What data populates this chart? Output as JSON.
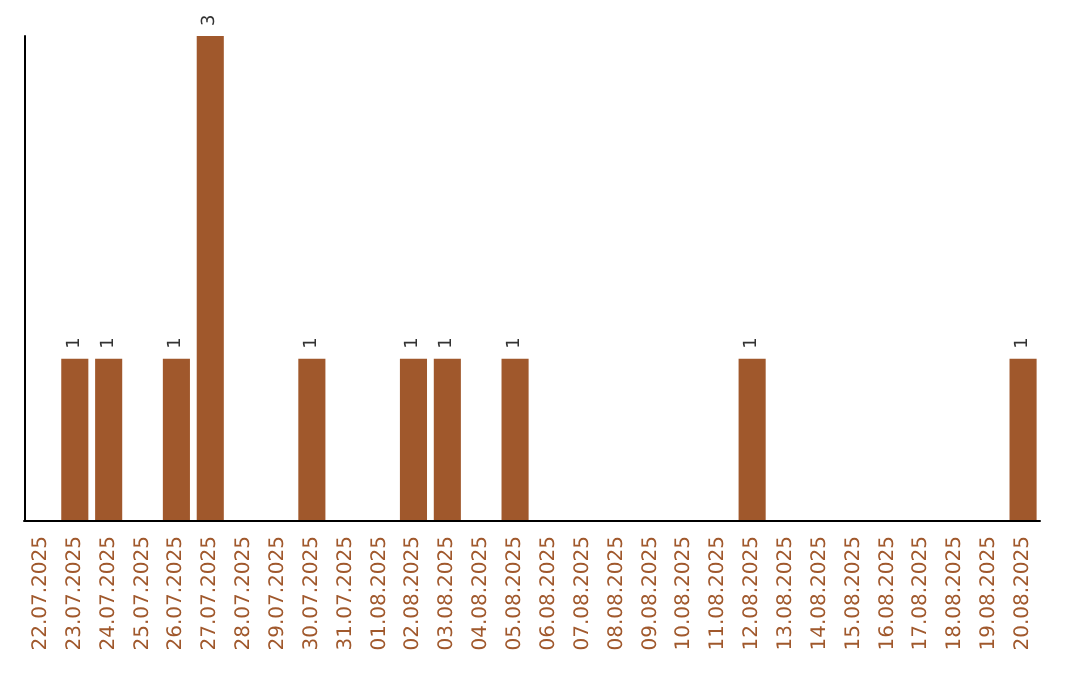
{
  "chart_data": {
    "type": "bar",
    "categories": [
      "22.07.2025",
      "23.07.2025",
      "24.07.2025",
      "25.07.2025",
      "26.07.2025",
      "27.07.2025",
      "28.07.2025",
      "29.07.2025",
      "30.07.2025",
      "31.07.2025",
      "01.08.2025",
      "02.08.2025",
      "03.08.2025",
      "04.08.2025",
      "05.08.2025",
      "06.08.2025",
      "07.08.2025",
      "08.08.2025",
      "09.08.2025",
      "10.08.2025",
      "11.08.2025",
      "12.08.2025",
      "13.08.2025",
      "14.08.2025",
      "15.08.2025",
      "16.08.2025",
      "17.08.2025",
      "18.08.2025",
      "19.08.2025",
      "20.08.2025"
    ],
    "values": [
      0,
      1,
      1,
      0,
      1,
      3,
      0,
      0,
      1,
      0,
      0,
      1,
      1,
      0,
      1,
      0,
      0,
      0,
      0,
      0,
      0,
      1,
      0,
      0,
      0,
      0,
      0,
      0,
      0,
      1
    ],
    "value_labels": [
      null,
      "1",
      "1",
      null,
      "1",
      "3",
      null,
      null,
      "1",
      null,
      null,
      "1",
      "1",
      null,
      "1",
      null,
      null,
      null,
      null,
      null,
      null,
      "1",
      null,
      null,
      null,
      null,
      null,
      null,
      null,
      "1"
    ],
    "color": "#a0582c",
    "grid": false,
    "tick_labels": "x"
  }
}
